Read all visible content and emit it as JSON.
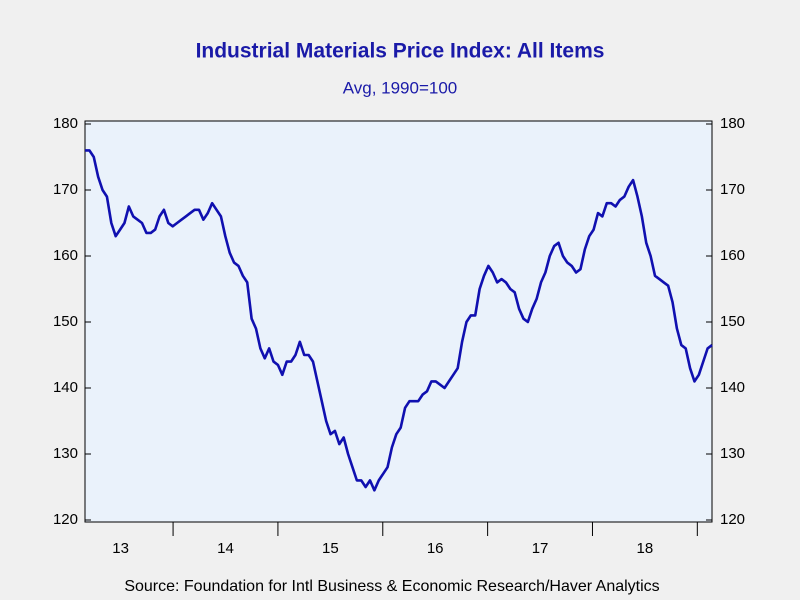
{
  "chart_data": {
    "type": "line",
    "title": "Industrial Materials Price Index: All Items",
    "subtitle": "Avg, 1990=100",
    "source": "Source:  Foundation for Intl Business & Economic Research/Haver Analytics",
    "xlim": [
      13.16,
      19.14
    ],
    "xticks": [
      {
        "value": 13.5,
        "label": "13"
      },
      {
        "value": 14.5,
        "label": "14"
      },
      {
        "value": 15.5,
        "label": "15"
      },
      {
        "value": 16.5,
        "label": "16"
      },
      {
        "value": 17.5,
        "label": "17"
      },
      {
        "value": 18.5,
        "label": "18"
      }
    ],
    "ylim": [
      120,
      180
    ],
    "yticks": [
      120,
      130,
      140,
      150,
      160,
      170,
      180
    ],
    "y2lim": [
      120,
      180
    ],
    "y2ticks": [
      120,
      130,
      140,
      150,
      160,
      170,
      180
    ],
    "series": [
      {
        "name": "Industrial Materials Price Index: All Items",
        "color": "#1010b0",
        "values": [
          176,
          176,
          175,
          172,
          170,
          169,
          165,
          163,
          164,
          165,
          167.5,
          166,
          165.5,
          165,
          163.5,
          163.5,
          164,
          166,
          167,
          165,
          164.5,
          165,
          165.5,
          166,
          166.5,
          167,
          167,
          165.5,
          166.5,
          168,
          167,
          166,
          163,
          160.5,
          159,
          158.5,
          157,
          156,
          150.5,
          149,
          146,
          144.5,
          146,
          144,
          143.5,
          142,
          144,
          144,
          145,
          147,
          145,
          145,
          144,
          141,
          138,
          135,
          133,
          133.5,
          131.5,
          132.5,
          130,
          128,
          126,
          126,
          125,
          126,
          124.5,
          126,
          127,
          128,
          131,
          133,
          134,
          137,
          138,
          138,
          138,
          139,
          139.5,
          141,
          141,
          140.5,
          140,
          141,
          142,
          143,
          147,
          150,
          151,
          151,
          155,
          157,
          158.5,
          157.5,
          156,
          156.5,
          156,
          155,
          154.5,
          152,
          150.5,
          150,
          152,
          153.5,
          156,
          157.5,
          160,
          161.5,
          162,
          160,
          159,
          158.5,
          157.5,
          158,
          161,
          163,
          164,
          166.5,
          166,
          168,
          168,
          167.5,
          168.5,
          169,
          170.5,
          171.5,
          169,
          166,
          162,
          160,
          157,
          156.5,
          156,
          155.5,
          153,
          149,
          146.5,
          146,
          143,
          141,
          142,
          144,
          146,
          146.5
        ]
      }
    ]
  }
}
